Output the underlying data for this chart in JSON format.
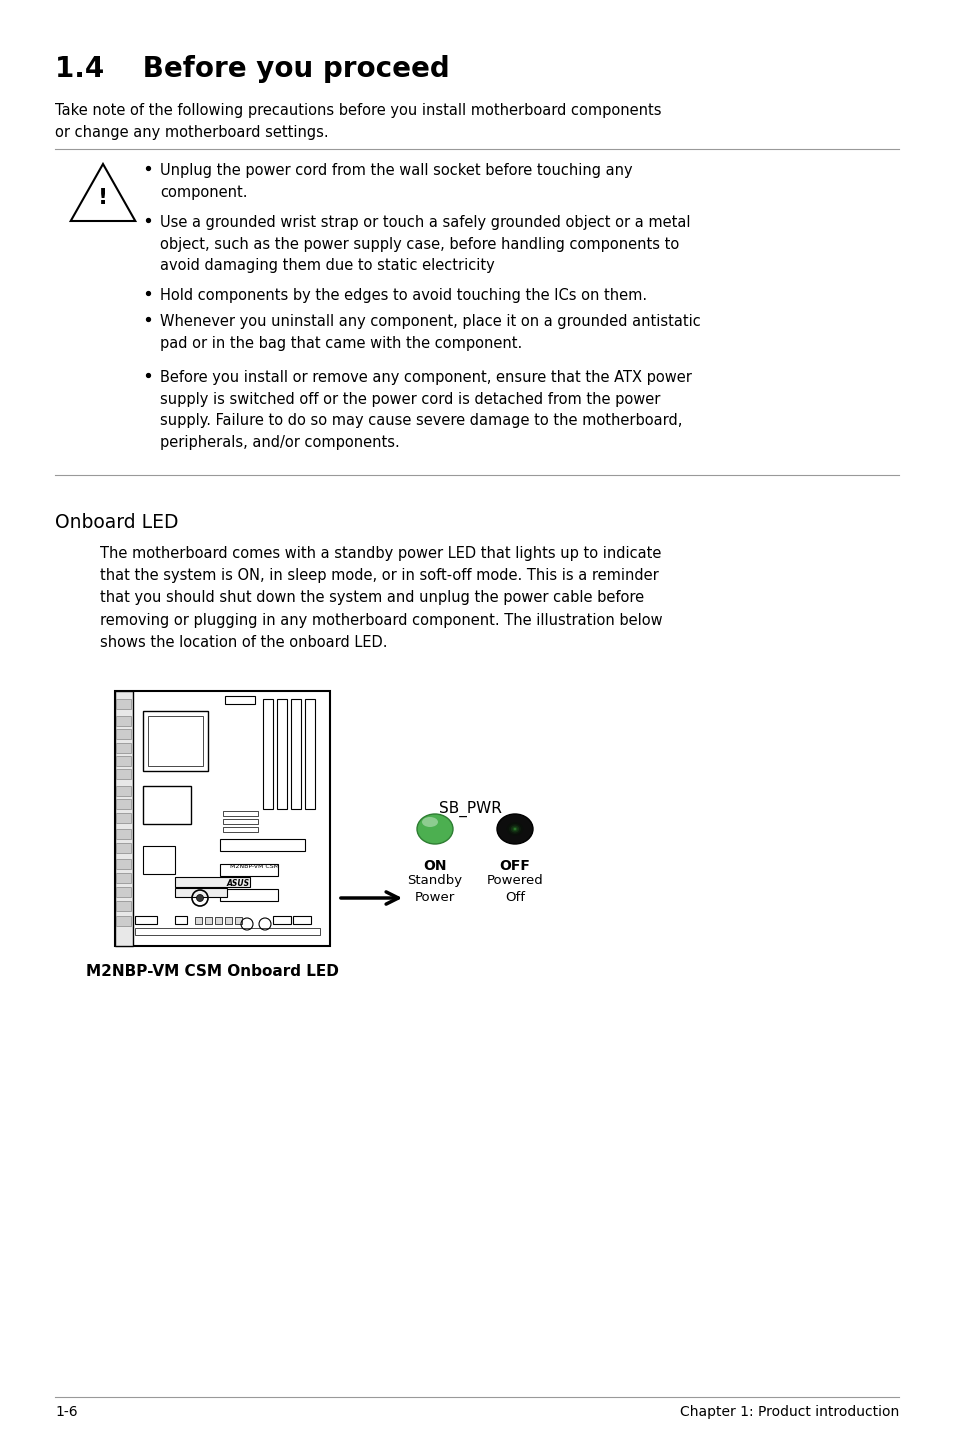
{
  "title": "1.4    Before you proceed",
  "intro_text": "Take note of the following precautions before you install motherboard components or change any motherboard settings.",
  "bullets": [
    "Unplug the power cord from the wall socket before touching any component.",
    "Use a grounded wrist strap or touch a safely grounded object or a metal object, such as the power supply case, before handling components to avoid damaging them due to static electricity",
    "Hold components by the edges to avoid touching the ICs on them.",
    "Whenever you uninstall any component, place it on a grounded antistatic pad or in the bag that came with the component.",
    "Before you install or remove any component, ensure that the ATX power supply is switched off or the power cord is detached from the power supply. Failure to do so may cause severe damage to the motherboard, peripherals, and/or components."
  ],
  "section2_title": "Onboard LED",
  "section2_body": "The motherboard comes with a standby power LED that lights up to indicate that the system is ON, in sleep mode, or in soft-off mode. This is a reminder that you should shut down the system and unplug the power cable before removing or plugging in any motherboard component. The illustration below shows the location of the onboard LED.",
  "diagram_caption": "M2NBP-VM CSM Onboard LED",
  "sb_pwr_label": "SB_PWR",
  "on_label": "ON",
  "standby_label": "Standby\nPower",
  "off_label": "OFF",
  "powered_label": "Powered\nOff",
  "footer_left": "1-6",
  "footer_right": "Chapter 1: Product introduction",
  "bg_color": "#ffffff",
  "text_color": "#000000"
}
